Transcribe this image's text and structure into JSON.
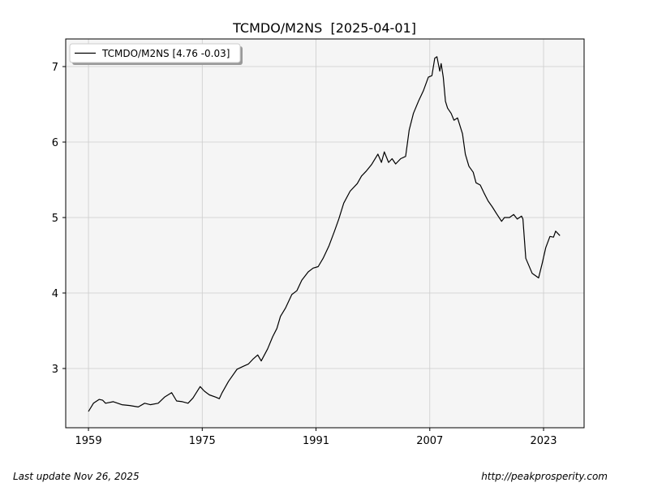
{
  "chart_data": {
    "type": "line",
    "title": "TCMDO/M2NS  [2025-04-01]",
    "xlabel": "",
    "ylabel": "",
    "xlim": [
      1955.8,
      2028.7
    ],
    "ylim": [
      2.215,
      7.366
    ],
    "grid": true,
    "x_ticks": [
      1959,
      1975,
      1991,
      2007,
      2023
    ],
    "x_tick_labels": [
      "1959",
      "1975",
      "1991",
      "2007",
      "2023"
    ],
    "y_ticks": [
      3,
      4,
      5,
      6,
      7
    ],
    "y_tick_labels": [
      "3",
      "4",
      "5",
      "6",
      "7"
    ],
    "legend": {
      "placement": "top-left",
      "entries": [
        "TCMDO/M2NS [4.76 -0.03]"
      ]
    },
    "series": [
      {
        "name": "TCMDO/M2NS",
        "color": "#000000",
        "x": [
          1959,
          1959.7,
          1960.5,
          1961,
          1961.4,
          1962.5,
          1963.7,
          1964.8,
          1966,
          1966.9,
          1967.7,
          1968.8,
          1969.7,
          1970.7,
          1971.4,
          1972.2,
          1973,
          1973.7,
          1974.7,
          1975.3,
          1976,
          1976.9,
          1977.4,
          1977.8,
          1978.7,
          1979.9,
          1980.8,
          1981.5,
          1982.2,
          1982.8,
          1983.3,
          1984.2,
          1984.9,
          1985.5,
          1986,
          1986.7,
          1987.6,
          1988.3,
          1989,
          1989.9,
          1990.6,
          1991.3,
          1992,
          1992.8,
          1993.6,
          1994.2,
          1994.9,
          1995.8,
          1996.8,
          1997.4,
          1998.1,
          1998.8,
          1999.7,
          2000.2,
          2000.6,
          2001.2,
          2001.7,
          2002.2,
          2002.9,
          2003.6,
          2004.1,
          2004.7,
          2005.4,
          2006.1,
          2006.8,
          2007.3,
          2007.7,
          2008,
          2008.4,
          2008.6,
          2008.9,
          2009.2,
          2009.5,
          2010,
          2010.4,
          2010.9,
          2011.6,
          2012,
          2012.5,
          2013.1,
          2013.5,
          2014.1,
          2014.6,
          2015.2,
          2015.8,
          2016.4,
          2017.1,
          2017.5,
          2018.2,
          2018.8,
          2019.3,
          2019.9,
          2020.1,
          2020.5,
          2021.4,
          2022.3,
          2022.8,
          2023.3,
          2023.9,
          2024.4,
          2024.7,
          2025.3
        ],
        "y": [
          2.43,
          2.54,
          2.59,
          2.58,
          2.54,
          2.56,
          2.52,
          2.51,
          2.49,
          2.54,
          2.52,
          2.54,
          2.62,
          2.68,
          2.57,
          2.56,
          2.54,
          2.61,
          2.76,
          2.7,
          2.65,
          2.62,
          2.6,
          2.68,
          2.83,
          2.99,
          3.03,
          3.06,
          3.13,
          3.18,
          3.1,
          3.26,
          3.42,
          3.53,
          3.69,
          3.8,
          3.98,
          4.03,
          4.17,
          4.28,
          4.33,
          4.35,
          4.46,
          4.62,
          4.82,
          4.98,
          5.19,
          5.35,
          5.45,
          5.55,
          5.62,
          5.7,
          5.84,
          5.73,
          5.87,
          5.73,
          5.78,
          5.71,
          5.78,
          5.81,
          6.16,
          6.38,
          6.54,
          6.68,
          6.86,
          6.88,
          7.11,
          7.13,
          6.94,
          7.04,
          6.86,
          6.54,
          6.45,
          6.38,
          6.29,
          6.32,
          6.11,
          5.84,
          5.68,
          5.6,
          5.46,
          5.43,
          5.33,
          5.22,
          5.14,
          5.05,
          4.95,
          5.0,
          5.0,
          5.04,
          4.98,
          5.02,
          4.98,
          4.46,
          4.26,
          4.2,
          4.39,
          4.6,
          4.75,
          4.74,
          4.82,
          4.76
        ]
      }
    ]
  },
  "footer": {
    "left": "Last update Nov 26, 2025",
    "right": "http://peakprosperity.com"
  }
}
